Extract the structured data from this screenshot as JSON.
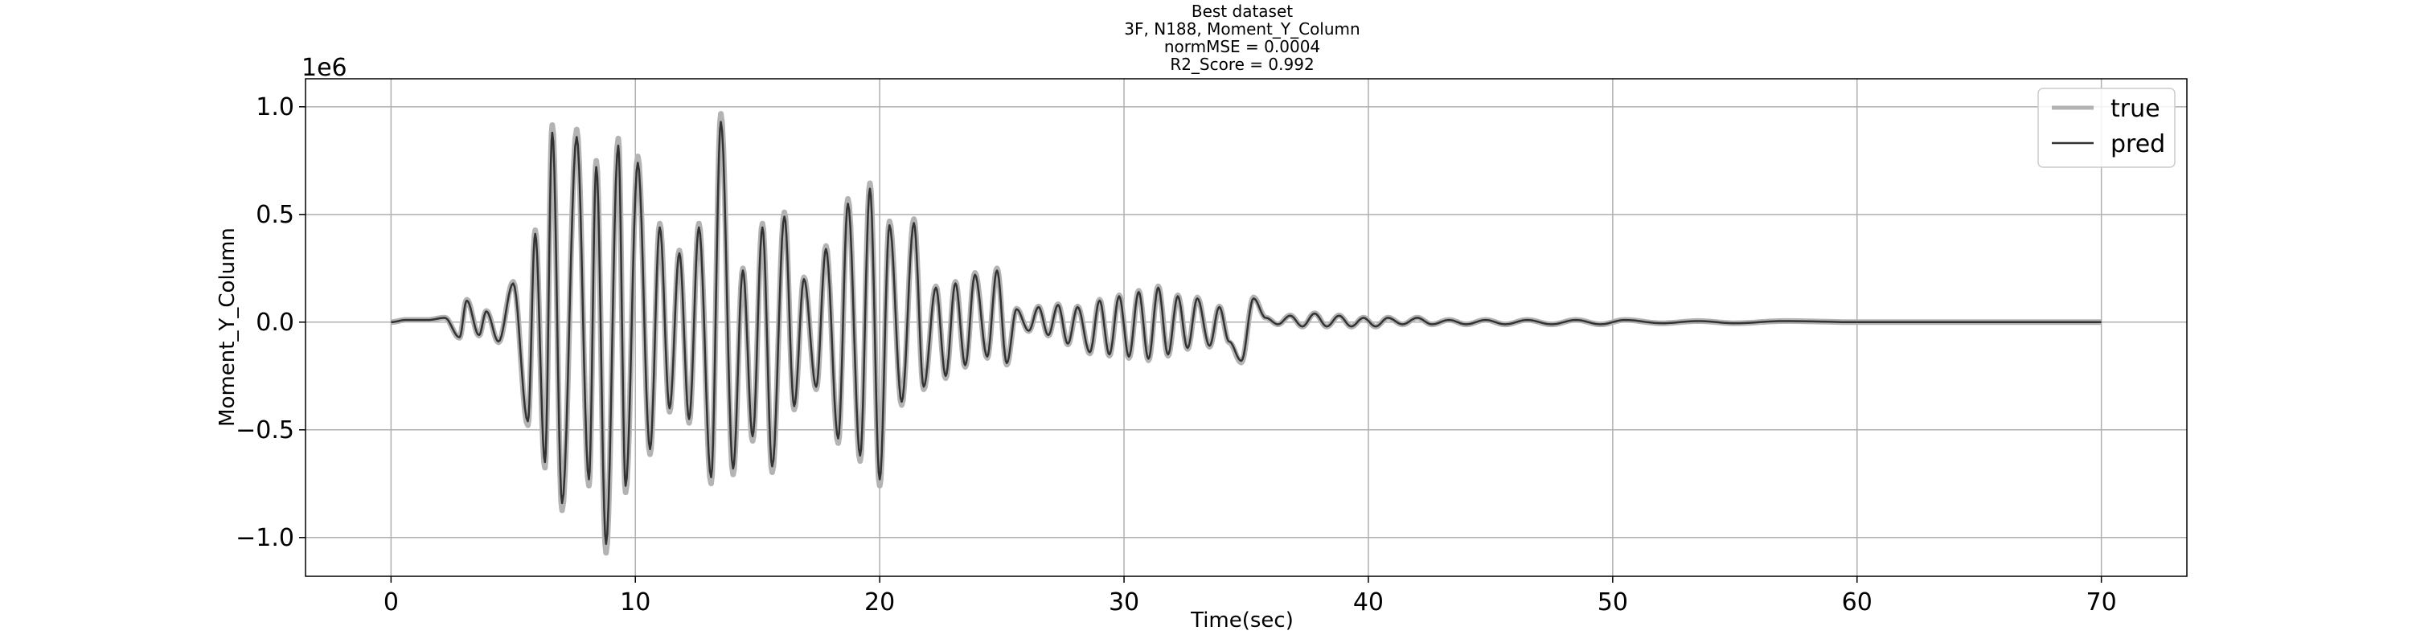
{
  "chart_data": {
    "type": "line",
    "title_lines": [
      "Best dataset",
      "3F, N188, Moment_Y_Column",
      "normMSE = 0.0004",
      "R2_Score = 0.992"
    ],
    "xlabel": "Time(sec)",
    "ylabel": "Moment_Y_Column",
    "y_offset_text": "1e6",
    "xlim": [
      -3.5,
      73.5
    ],
    "ylim": [
      -1.18,
      1.13
    ],
    "xticks": [
      0,
      10,
      20,
      30,
      40,
      50,
      60,
      70
    ],
    "xtick_labels": [
      "0",
      "10",
      "20",
      "30",
      "40",
      "50",
      "60",
      "70"
    ],
    "yticks": [
      1.0,
      0.5,
      0.0,
      -0.5,
      -1.0
    ],
    "ytick_labels": [
      "1.0",
      "0.5",
      "0.0",
      "−0.5",
      "−1.0"
    ],
    "grid": true,
    "legend_position": "top-right",
    "series": [
      {
        "name": "true",
        "color": "#b3b3b3"
      },
      {
        "name": "pred",
        "color": "#333333"
      }
    ],
    "peaks": [
      [
        0.0,
        0.0
      ],
      [
        0.6,
        0.01
      ],
      [
        1.5,
        0.01
      ],
      [
        2.2,
        0.02
      ],
      [
        2.8,
        -0.07
      ],
      [
        3.1,
        0.1
      ],
      [
        3.6,
        -0.06
      ],
      [
        3.9,
        0.05
      ],
      [
        4.4,
        -0.09
      ],
      [
        5.0,
        0.18
      ],
      [
        5.6,
        -0.46
      ],
      [
        5.9,
        0.41
      ],
      [
        6.3,
        -0.65
      ],
      [
        6.6,
        0.88
      ],
      [
        7.0,
        -0.84
      ],
      [
        7.6,
        0.86
      ],
      [
        8.1,
        -0.73
      ],
      [
        8.4,
        0.72
      ],
      [
        8.8,
        -1.03
      ],
      [
        9.3,
        0.82
      ],
      [
        9.6,
        -0.76
      ],
      [
        10.1,
        0.74
      ],
      [
        10.6,
        -0.59
      ],
      [
        11.0,
        0.44
      ],
      [
        11.4,
        -0.4
      ],
      [
        11.8,
        0.32
      ],
      [
        12.2,
        -0.45
      ],
      [
        12.6,
        0.44
      ],
      [
        13.1,
        -0.72
      ],
      [
        13.5,
        0.93
      ],
      [
        14.0,
        -0.68
      ],
      [
        14.4,
        0.24
      ],
      [
        14.8,
        -0.53
      ],
      [
        15.2,
        0.44
      ],
      [
        15.6,
        -0.67
      ],
      [
        16.1,
        0.49
      ],
      [
        16.5,
        -0.39
      ],
      [
        16.9,
        0.2
      ],
      [
        17.4,
        -0.3
      ],
      [
        17.8,
        0.34
      ],
      [
        18.3,
        -0.54
      ],
      [
        18.7,
        0.55
      ],
      [
        19.2,
        -0.62
      ],
      [
        19.6,
        0.62
      ],
      [
        20.0,
        -0.73
      ],
      [
        20.4,
        0.45
      ],
      [
        20.9,
        -0.37
      ],
      [
        21.4,
        0.46
      ],
      [
        21.8,
        -0.3
      ],
      [
        22.3,
        0.16
      ],
      [
        22.7,
        -0.25
      ],
      [
        23.1,
        0.18
      ],
      [
        23.5,
        -0.2
      ],
      [
        23.9,
        0.22
      ],
      [
        24.4,
        -0.16
      ],
      [
        24.8,
        0.24
      ],
      [
        25.2,
        -0.19
      ],
      [
        25.6,
        0.06
      ],
      [
        26.1,
        -0.04
      ],
      [
        26.5,
        0.07
      ],
      [
        26.9,
        -0.06
      ],
      [
        27.3,
        0.08
      ],
      [
        27.7,
        -0.1
      ],
      [
        28.1,
        0.07
      ],
      [
        28.6,
        -0.14
      ],
      [
        29.0,
        0.1
      ],
      [
        29.4,
        -0.15
      ],
      [
        29.8,
        0.12
      ],
      [
        30.2,
        -0.16
      ],
      [
        30.6,
        0.14
      ],
      [
        31.0,
        -0.17
      ],
      [
        31.4,
        0.16
      ],
      [
        31.8,
        -0.15
      ],
      [
        32.2,
        0.12
      ],
      [
        32.6,
        -0.12
      ],
      [
        33.0,
        0.11
      ],
      [
        33.5,
        -0.11
      ],
      [
        33.9,
        0.07
      ],
      [
        34.3,
        -0.09
      ],
      [
        34.8,
        -0.18
      ],
      [
        35.3,
        0.11
      ],
      [
        35.8,
        0.02
      ],
      [
        36.3,
        -0.01
      ],
      [
        36.8,
        0.03
      ],
      [
        37.3,
        -0.02
      ],
      [
        37.8,
        0.04
      ],
      [
        38.3,
        -0.02
      ],
      [
        38.8,
        0.03
      ],
      [
        39.3,
        -0.02
      ],
      [
        39.8,
        0.02
      ],
      [
        40.3,
        -0.02
      ],
      [
        40.8,
        0.02
      ],
      [
        41.4,
        -0.01
      ],
      [
        42.0,
        0.02
      ],
      [
        42.6,
        -0.01
      ],
      [
        43.3,
        0.01
      ],
      [
        44.0,
        -0.01
      ],
      [
        44.8,
        0.01
      ],
      [
        45.6,
        -0.01
      ],
      [
        46.5,
        0.01
      ],
      [
        47.5,
        -0.01
      ],
      [
        48.5,
        0.01
      ],
      [
        49.5,
        -0.01
      ],
      [
        50.5,
        0.01
      ],
      [
        52.0,
        -0.005
      ],
      [
        53.5,
        0.005
      ],
      [
        55.0,
        -0.005
      ],
      [
        57.0,
        0.005
      ],
      [
        60.0,
        0.0
      ],
      [
        65.0,
        0.0
      ],
      [
        70.0,
        0.0
      ]
    ]
  }
}
